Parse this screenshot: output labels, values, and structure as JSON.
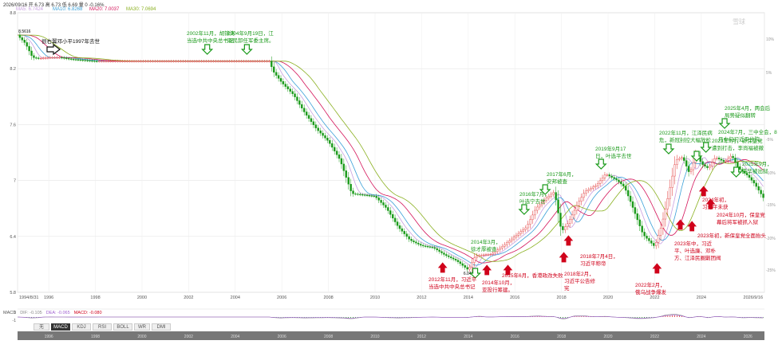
{
  "header": {
    "info": "2026/09/16 开 6.73 高 6.73 低 6.69 量 0 -0.16%",
    "ma": [
      {
        "label": "MA5: 6.7424",
        "color": "#c8a0e0"
      },
      {
        "label": "MA10: 6.8268",
        "color": "#3aa0d8"
      },
      {
        "label": "MA20: 7.0037",
        "color": "#d4145a"
      },
      {
        "label": "MA30: 7.0694",
        "color": "#8ab020"
      }
    ]
  },
  "macd_legend": [
    {
      "label": "MACD",
      "color": "#555555"
    },
    {
      "label": "DIF: -0.105",
      "color": "#888888"
    },
    {
      "label": "DEA: -0.065",
      "color": "#a060d0"
    },
    {
      "label": "MACD: -0.080",
      "color": "#d0021b"
    }
  ],
  "tabs": [
    {
      "label": "无",
      "active": false
    },
    {
      "label": "MACD",
      "active": true
    },
    {
      "label": "KDJ",
      "active": false
    },
    {
      "label": "RSI",
      "active": false
    },
    {
      "label": "BOLL",
      "active": false
    },
    {
      "label": "WR",
      "active": false
    },
    {
      "label": "DMI",
      "active": false
    }
  ],
  "watermark": "雪球",
  "chart_data": {
    "type": "line",
    "ylim": [
      5.8,
      8.8
    ],
    "y_ticks": [
      "8.8",
      "8.2",
      "7.6",
      "7",
      "6.4",
      "5.8"
    ],
    "x_ticks": [
      "1994/8/31",
      "1996",
      "1998",
      "2000",
      "2002",
      "2004",
      "2006",
      "2008",
      "2010",
      "2012",
      "2014",
      "2016",
      "2018",
      "2020",
      "2022",
      "2024",
      "2026/9/16"
    ],
    "right_pct_ticks": [
      "10%",
      "5%",
      "-5%",
      "-10%",
      "-15%",
      "-20%",
      "-25%"
    ],
    "bottom_year_ticks": [
      "1996",
      "1998",
      "2000",
      "2002",
      "2004",
      "2006",
      "2008",
      "2010",
      "2012",
      "2014",
      "2016",
      "2018",
      "2020",
      "2022",
      "2024",
      "2026"
    ],
    "price_labels": [
      {
        "year": 1994.7,
        "value": 8.5616,
        "label": "8.5616"
      },
      {
        "year": 2014.0,
        "value": 6.0408,
        "label": "6.0408"
      }
    ],
    "series": [
      {
        "x": [
          1994.66,
          1995.0,
          1995.3,
          1995.6,
          1996.0,
          1996.5,
          1997.0,
          1997.5,
          1998.0,
          2000.0,
          2002.0,
          2004.0,
          2005.5,
          2005.6,
          2006.0,
          2006.5,
          2007.0,
          2007.5,
          2008.0,
          2008.5,
          2009.0,
          2010.0,
          2010.5,
          2011.0,
          2011.5,
          2012.0,
          2012.5,
          2013.0,
          2013.5,
          2014.0,
          2014.3,
          2014.6,
          2015.0,
          2015.5,
          2016.0,
          2016.5,
          2016.9,
          2017.3,
          2017.7,
          2018.0,
          2018.3,
          2018.7,
          2019.0,
          2019.5,
          2019.9,
          2020.4,
          2020.7,
          2021.0,
          2021.5,
          2022.0,
          2022.3,
          2022.6,
          2022.9,
          2023.2,
          2023.5,
          2023.8,
          2024.0,
          2024.3,
          2024.6,
          2025.0,
          2025.3,
          2025.6,
          2026.0,
          2026.3,
          2026.7
        ],
        "values": [
          8.56,
          8.47,
          8.32,
          8.31,
          8.32,
          8.32,
          8.3,
          8.29,
          8.28,
          8.28,
          8.28,
          8.28,
          8.28,
          8.18,
          8.05,
          7.92,
          7.72,
          7.55,
          7.42,
          7.22,
          6.86,
          6.83,
          6.7,
          6.5,
          6.36,
          6.3,
          6.28,
          6.2,
          6.14,
          6.04,
          6.19,
          6.2,
          6.21,
          6.3,
          6.4,
          6.5,
          6.7,
          6.8,
          6.88,
          6.45,
          6.55,
          6.75,
          6.88,
          6.95,
          7.07,
          7.0,
          6.93,
          6.75,
          6.42,
          6.29,
          6.52,
          6.85,
          7.22,
          7.25,
          7.07,
          7.3,
          7.18,
          7.13,
          7.25,
          7.2,
          7.27,
          7.13,
          7.05,
          6.96,
          6.8
        ]
      }
    ],
    "annotations": [
      {
        "text": "很右翼邓小平1997年去世",
        "year": 1996.2,
        "arrow": "outline-right"
      },
      {
        "text": "2002年11月，胡锦涛\n当选中共中央总书记",
        "year": 2002.8,
        "arrow": "green-down"
      },
      {
        "text": "2004年9月19日，江\n泽民卸任军委主席。",
        "year": 2004.5,
        "arrow": "green-down"
      },
      {
        "text": "2012年11月，习近平\n当选中共中央总书记",
        "year": 2012.9,
        "arrow": "red-up"
      },
      {
        "text": "2014年3月，\n徐才厚被查",
        "year": 2014.3,
        "arrow": "green-down"
      },
      {
        "text": "2014年10月，\n亚投行筹建。",
        "year": 2014.8,
        "arrow": "red-up"
      },
      {
        "text": "2015年6月，香港政改失败",
        "year": 2015.7,
        "arrow": "red-up"
      },
      {
        "text": "2016年7月，\n叶选宁去世",
        "year": 2016.4,
        "arrow": "green-down"
      },
      {
        "text": "2017年6月，\n安邦被查",
        "year": 2017.3,
        "arrow": "green-down"
      },
      {
        "text": "2018年7月4日，\n习近平称帝",
        "year": 2018.3,
        "arrow": "red-up"
      },
      {
        "text": "2018年2月，\n习近平公告修\n宪",
        "year": 2018.1,
        "arrow": "red-up"
      },
      {
        "text": "2019年9月17\n日，叶选平去世",
        "year": 2019.7,
        "arrow": "green-down"
      },
      {
        "text": "2022年2月，\n俄乌战争爆发",
        "year": 2022.1,
        "arrow": "red-up"
      },
      {
        "text": "2022年11月，江泽民病\n危，新冠封控大幅放松",
        "year": 2022.6,
        "arrow": "green-down"
      },
      {
        "text": "2023年中，习近\n平、叶选廉、邓朴\n方、江泽民圈剿团阀",
        "year": 2023.1,
        "arrow": "red-up"
      },
      {
        "text": "2023年初，新保皇党全面抬头",
        "year": 2023.6,
        "arrow": "red-up"
      },
      {
        "text": "2023年9月，新保皇党\n遭到打击，李尚福被撤",
        "year": 2023.8,
        "arrow": "green-down"
      },
      {
        "text": "2024年7月，三中全会，8\n月中旬习近平住院",
        "year": 2024.2,
        "arrow": "green-down"
      },
      {
        "text": "2024年初，\n习近平未获",
        "year": 2024.1,
        "arrow": "red-up"
      },
      {
        "text": "2024年10月，保皇党\n幕后将军被抓入狱",
        "year": 2024.4,
        "arrow": "red-up"
      },
      {
        "text": "2025年4月，两会后\n局势疑似翻转",
        "year": 2025.0,
        "arrow": "green-down"
      },
      {
        "text": "2025年9月，\n苗华被出狱",
        "year": 2025.5,
        "arrow": "green-down"
      }
    ]
  }
}
